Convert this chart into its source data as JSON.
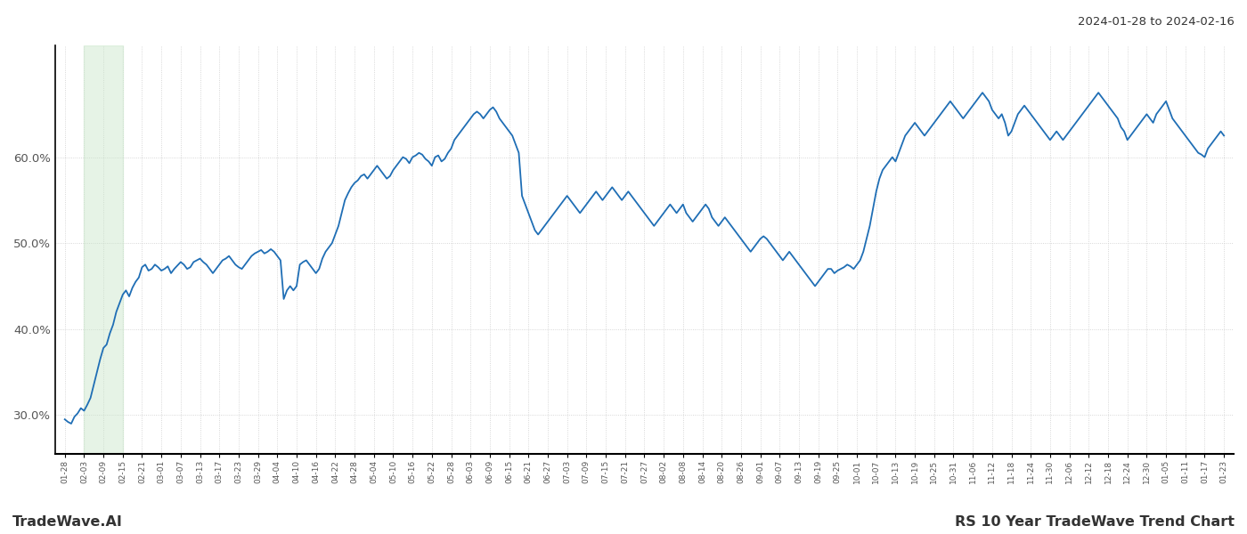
{
  "title_right": "2024-01-28 to 2024-02-16",
  "footer_left": "TradeWave.AI",
  "footer_right": "RS 10 Year TradeWave Trend Chart",
  "line_color": "#1f6eb5",
  "highlight_color": "#c8e6c9",
  "highlight_alpha": 0.45,
  "background_color": "#ffffff",
  "grid_color": "#cccccc",
  "yticks": [
    30.0,
    40.0,
    50.0,
    60.0
  ],
  "ylim": [
    25.5,
    73.0
  ],
  "x_labels": [
    "01-28",
    "02-03",
    "02-09",
    "02-15",
    "02-21",
    "03-01",
    "03-07",
    "03-13",
    "03-17",
    "03-23",
    "03-29",
    "04-04",
    "04-10",
    "04-16",
    "04-22",
    "04-28",
    "05-04",
    "05-10",
    "05-16",
    "05-22",
    "05-28",
    "06-03",
    "06-09",
    "06-15",
    "06-21",
    "06-27",
    "07-03",
    "07-09",
    "07-15",
    "07-21",
    "07-27",
    "08-02",
    "08-08",
    "08-14",
    "08-20",
    "08-26",
    "09-01",
    "09-07",
    "09-13",
    "09-19",
    "09-25",
    "10-01",
    "10-07",
    "10-13",
    "10-19",
    "10-25",
    "10-31",
    "11-06",
    "11-12",
    "11-18",
    "11-24",
    "11-30",
    "12-06",
    "12-12",
    "12-18",
    "12-24",
    "12-30",
    "01-05",
    "01-11",
    "01-17",
    "01-23"
  ],
  "highlight_xstart": 1,
  "highlight_xend": 3,
  "y_values": [
    29.5,
    29.2,
    29.0,
    29.8,
    30.2,
    30.8,
    30.5,
    31.2,
    32.0,
    33.5,
    35.0,
    36.5,
    37.8,
    38.2,
    39.5,
    40.5,
    42.0,
    43.0,
    44.0,
    44.5,
    43.8,
    44.8,
    45.5,
    46.0,
    47.2,
    47.5,
    46.8,
    47.0,
    47.5,
    47.2,
    46.8,
    47.0,
    47.3,
    46.5,
    47.0,
    47.4,
    47.8,
    47.5,
    47.0,
    47.2,
    47.8,
    48.0,
    48.2,
    47.8,
    47.5,
    47.0,
    46.5,
    47.0,
    47.5,
    48.0,
    48.2,
    48.5,
    48.0,
    47.5,
    47.2,
    47.0,
    47.5,
    48.0,
    48.5,
    48.8,
    49.0,
    49.2,
    48.8,
    49.0,
    49.3,
    49.0,
    48.5,
    48.0,
    43.5,
    44.5,
    45.0,
    44.5,
    45.0,
    47.5,
    47.8,
    48.0,
    47.5,
    47.0,
    46.5,
    47.0,
    48.2,
    49.0,
    49.5,
    50.0,
    51.0,
    52.0,
    53.5,
    55.0,
    55.8,
    56.5,
    57.0,
    57.3,
    57.8,
    58.0,
    57.5,
    58.0,
    58.5,
    59.0,
    58.5,
    58.0,
    57.5,
    57.8,
    58.5,
    59.0,
    59.5,
    60.0,
    59.8,
    59.3,
    60.0,
    60.2,
    60.5,
    60.3,
    59.8,
    59.5,
    59.0,
    60.0,
    60.2,
    59.5,
    59.8,
    60.5,
    61.0,
    62.0,
    62.5,
    63.0,
    63.5,
    64.0,
    64.5,
    65.0,
    65.3,
    65.0,
    64.5,
    65.0,
    65.5,
    65.8,
    65.3,
    64.5,
    64.0,
    63.5,
    63.0,
    62.5,
    61.5,
    60.5,
    55.5,
    54.5,
    53.5,
    52.5,
    51.5,
    51.0,
    51.5,
    52.0,
    52.5,
    53.0,
    53.5,
    54.0,
    54.5,
    55.0,
    55.5,
    55.0,
    54.5,
    54.0,
    53.5,
    54.0,
    54.5,
    55.0,
    55.5,
    56.0,
    55.5,
    55.0,
    55.5,
    56.0,
    56.5,
    56.0,
    55.5,
    55.0,
    55.5,
    56.0,
    55.5,
    55.0,
    54.5,
    54.0,
    53.5,
    53.0,
    52.5,
    52.0,
    52.5,
    53.0,
    53.5,
    54.0,
    54.5,
    54.0,
    53.5,
    54.0,
    54.5,
    53.5,
    53.0,
    52.5,
    53.0,
    53.5,
    54.0,
    54.5,
    54.0,
    53.0,
    52.5,
    52.0,
    52.5,
    53.0,
    52.5,
    52.0,
    51.5,
    51.0,
    50.5,
    50.0,
    49.5,
    49.0,
    49.5,
    50.0,
    50.5,
    50.8,
    50.5,
    50.0,
    49.5,
    49.0,
    48.5,
    48.0,
    48.5,
    49.0,
    48.5,
    48.0,
    47.5,
    47.0,
    46.5,
    46.0,
    45.5,
    45.0,
    45.5,
    46.0,
    46.5,
    47.0,
    47.0,
    46.5,
    46.8,
    47.0,
    47.2,
    47.5,
    47.3,
    47.0,
    47.5,
    48.0,
    49.0,
    50.5,
    52.0,
    54.0,
    56.0,
    57.5,
    58.5,
    59.0,
    59.5,
    60.0,
    59.5,
    60.5,
    61.5,
    62.5,
    63.0,
    63.5,
    64.0,
    63.5,
    63.0,
    62.5,
    63.0,
    63.5,
    64.0,
    64.5,
    65.0,
    65.5,
    66.0,
    66.5,
    66.0,
    65.5,
    65.0,
    64.5,
    65.0,
    65.5,
    66.0,
    66.5,
    67.0,
    67.5,
    67.0,
    66.5,
    65.5,
    65.0,
    64.5,
    65.0,
    64.0,
    62.5,
    63.0,
    64.0,
    65.0,
    65.5,
    66.0,
    65.5,
    65.0,
    64.5,
    64.0,
    63.5,
    63.0,
    62.5,
    62.0,
    62.5,
    63.0,
    62.5,
    62.0,
    62.5,
    63.0,
    63.5,
    64.0,
    64.5,
    65.0,
    65.5,
    66.0,
    66.5,
    67.0,
    67.5,
    67.0,
    66.5,
    66.0,
    65.5,
    65.0,
    64.5,
    63.5,
    63.0,
    62.0,
    62.5,
    63.0,
    63.5,
    64.0,
    64.5,
    65.0,
    64.5,
    64.0,
    65.0,
    65.5,
    66.0,
    66.5,
    65.5,
    64.5,
    64.0,
    63.5,
    63.0,
    62.5,
    62.0,
    61.5,
    61.0,
    60.5,
    60.3,
    60.0,
    61.0,
    61.5,
    62.0,
    62.5,
    63.0,
    62.5
  ]
}
